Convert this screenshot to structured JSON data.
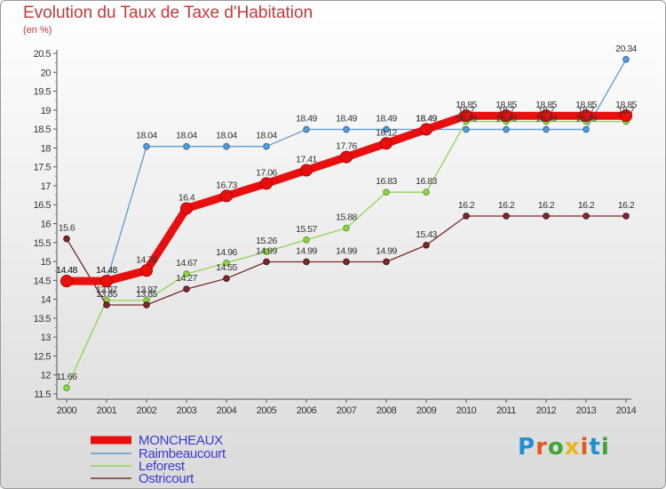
{
  "title": "Evolution du Taux de Taxe d'Habitation",
  "unit_label": "(en %)",
  "logo": {
    "text": "Proxiti",
    "letter_colors": [
      "#1f8fd6",
      "#e25a1c",
      "#3fa535",
      "#e6b81a",
      "#e25a1c",
      "#1f8fd6",
      "#3fa535"
    ]
  },
  "chart_data": {
    "type": "line",
    "title": "Evolution du Taux de Taxe d'Habitation",
    "ylabel": "(en %)",
    "xlabel": "",
    "x": [
      "2000",
      "2001",
      "2002",
      "2003",
      "2004",
      "2005",
      "2006",
      "2007",
      "2008",
      "2009",
      "2010",
      "2011",
      "2012",
      "2013",
      "2014"
    ],
    "ylim": [
      11.5,
      20.5
    ],
    "yticks": [
      "11.5",
      "12",
      "12.5",
      "13",
      "13.5",
      "14",
      "14.5",
      "15",
      "15.5",
      "16",
      "16.5",
      "17",
      "17.5",
      "18",
      "18.5",
      "19",
      "19.5",
      "20",
      "20.5"
    ],
    "grid": false,
    "legend_position": "bottom-left",
    "series": [
      {
        "name": "MONCHEAUX",
        "color": "#e80f0f",
        "values": [
          14.48,
          14.48,
          14.76,
          16.4,
          16.73,
          17.06,
          17.41,
          17.76,
          18.12,
          18.49,
          18.85,
          18.85,
          18.85,
          18.85,
          18.85
        ],
        "labels": [
          "14.48",
          "14.48",
          "14.76",
          "16.4",
          "16.73",
          "17.06",
          "17.41",
          "17.76",
          "18.12",
          "18.49",
          "18.85",
          "18.85",
          "18.85",
          "18.85",
          "18.85"
        ]
      },
      {
        "name": "Raimbeaucourt",
        "color": "#5b9bd5",
        "values": [
          14.48,
          14.48,
          18.04,
          18.04,
          18.04,
          18.04,
          18.49,
          18.49,
          18.49,
          18.49,
          18.49,
          18.49,
          18.49,
          18.49,
          20.34
        ],
        "labels": [
          "14.48",
          "14.48",
          "18.04",
          "18.04",
          "18.04",
          "18.04",
          "18.49",
          "18.49",
          "18.49",
          "18.49",
          "18.49",
          "18.49",
          "18.49",
          "18.49",
          "20.34"
        ]
      },
      {
        "name": "Leforest",
        "color": "#8fd451",
        "values": [
          11.66,
          13.97,
          13.97,
          14.67,
          14.96,
          15.26,
          15.57,
          15.88,
          16.83,
          16.83,
          18.7,
          18.7,
          18.7,
          18.7,
          18.7
        ],
        "labels": [
          "11.66",
          "13.97",
          "13.97",
          "14.67",
          "14.96",
          "15.26",
          "15.57",
          "15.88",
          "16.83",
          "16.83",
          "18.7",
          "18.7",
          "18.7",
          "18.7",
          "18.7"
        ]
      },
      {
        "name": "Ostricourt",
        "color": "#7a2a2a",
        "values": [
          15.6,
          13.85,
          13.85,
          14.27,
          14.55,
          14.99,
          14.99,
          14.99,
          14.99,
          15.43,
          16.2,
          16.2,
          16.2,
          16.2,
          16.2
        ],
        "labels": [
          "15.6",
          "13.85",
          "13.85",
          "14.27",
          "14.55",
          "14.99",
          "14.99",
          "14.99",
          "14.99",
          "15.43",
          "16.2",
          "16.2",
          "16.2",
          "16.2",
          "16.2"
        ]
      }
    ]
  }
}
